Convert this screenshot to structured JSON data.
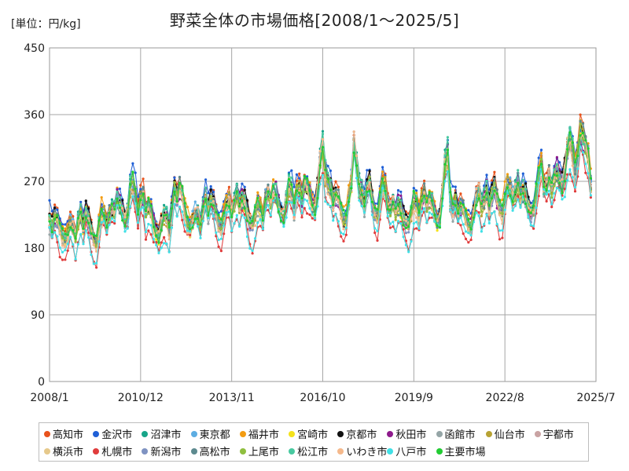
{
  "unit_label": "[単位：円/kg]",
  "title": "野菜全体の市場価格[2008/1～2025/5]",
  "chart_data": {
    "type": "line",
    "title": "野菜全体の市場価格[2008/1～2025/5]",
    "unit": "円/kg",
    "xlabel": "",
    "ylabel": "",
    "xlim": [
      "2008/1",
      "2025/7"
    ],
    "ylim": [
      0,
      450
    ],
    "y_ticks": [
      0,
      90,
      180,
      270,
      360,
      450
    ],
    "x_ticks": [
      "2008/1",
      "2010/12",
      "2013/11",
      "2016/10",
      "2019/9",
      "2022/8",
      "2025/7"
    ],
    "grid": true,
    "legend_position": "bottom",
    "base_series": {
      "name": "主要市場",
      "frequency": "monthly",
      "start": "2008/1",
      "values_by_year": {
        "2008": [
          218,
          209,
          222,
          218,
          205,
          196,
          192,
          201,
          214,
          208,
          196,
          218
        ],
        "2009": [
          226,
          212,
          230,
          221,
          204,
          192,
          186,
          210,
          228,
          224,
          213,
          227
        ],
        "2010": [
          234,
          230,
          246,
          241,
          232,
          218,
          226,
          262,
          271,
          252,
          227,
          246
        ],
        "2011": [
          252,
          227,
          237,
          230,
          212,
          204,
          197,
          214,
          224,
          220,
          206,
          232
        ],
        "2012": [
          259,
          248,
          262,
          252,
          231,
          214,
          207,
          218,
          227,
          224,
          213,
          232
        ],
        "2013": [
          246,
          232,
          245,
          240,
          225,
          212,
          208,
          224,
          238,
          243,
          228,
          242
        ],
        "2014": [
          253,
          238,
          248,
          245,
          228,
          214,
          211,
          226,
          236,
          233,
          221,
          246
        ],
        "2015": [
          255,
          244,
          256,
          254,
          240,
          227,
          224,
          245,
          264,
          258,
          238,
          256
        ],
        "2016": [
          258,
          247,
          266,
          264,
          252,
          238,
          236,
          262,
          298,
          318,
          282,
          268
        ],
        "2017": [
          262,
          244,
          252,
          246,
          230,
          218,
          220,
          246,
          268,
          322,
          296,
          262
        ],
        "2018": [
          252,
          240,
          262,
          268,
          245,
          226,
          222,
          244,
          266,
          262,
          238,
          232
        ],
        "2019": [
          242,
          230,
          238,
          236,
          222,
          214,
          212,
          228,
          244,
          240,
          226,
          244
        ],
        "2020": [
          254,
          238,
          246,
          241,
          226,
          218,
          222,
          256,
          292,
          308,
          248,
          236
        ],
        "2021": [
          242,
          228,
          236,
          232,
          220,
          212,
          210,
          230,
          248,
          256,
          238,
          244
        ],
        "2022": [
          256,
          240,
          252,
          262,
          246,
          232,
          228,
          246,
          264,
          262,
          248,
          256
        ],
        "2023": [
          268,
          250,
          258,
          252,
          236,
          228,
          232,
          252,
          276,
          292,
          264,
          262
        ],
        "2024": [
          278,
          262,
          274,
          282,
          276,
          268,
          284,
          312,
          326,
          312,
          286,
          304
        ],
        "2025": [
          338,
          332,
          318,
          306,
          266
        ]
      }
    },
    "series": [
      {
        "name": "高知市",
        "color": "#e8521c",
        "offset": 12
      },
      {
        "name": "金沢市",
        "color": "#1f5fd6",
        "offset": 16
      },
      {
        "name": "沼津市",
        "color": "#17a589",
        "offset": 2
      },
      {
        "name": "東京都",
        "color": "#5dade2",
        "offset": 4
      },
      {
        "name": "福井市",
        "color": "#f39c12",
        "offset": 8
      },
      {
        "name": "宮崎市",
        "color": "#f4e21a",
        "offset": -6
      },
      {
        "name": "京都市",
        "color": "#111111",
        "offset": 4
      },
      {
        "name": "秋田市",
        "color": "#8e1a8c",
        "offset": 2
      },
      {
        "name": "函館市",
        "color": "#95a5a6",
        "offset": -10
      },
      {
        "name": "仙台市",
        "color": "#b7a233",
        "offset": -2
      },
      {
        "name": "宇都市",
        "color": "#c9a3a3",
        "offset": -4
      },
      {
        "name": "横浜市",
        "color": "#e6c98b",
        "offset": -2
      },
      {
        "name": "札幌市",
        "color": "#e03c3c",
        "offset": -30
      },
      {
        "name": "新潟市",
        "color": "#7f93c2",
        "offset": -4
      },
      {
        "name": "高松市",
        "color": "#5d8a8f",
        "offset": 0
      },
      {
        "name": "上尾市",
        "color": "#8fbf3f",
        "offset": -2
      },
      {
        "name": "松江市",
        "color": "#48c9a0",
        "offset": 6
      },
      {
        "name": "いわき市",
        "color": "#f5b98c",
        "offset": -6
      },
      {
        "name": "八戸市",
        "color": "#40e0e6",
        "offset": -28
      },
      {
        "name": "主要市場",
        "color": "#22cc33",
        "offset": 0
      }
    ]
  }
}
